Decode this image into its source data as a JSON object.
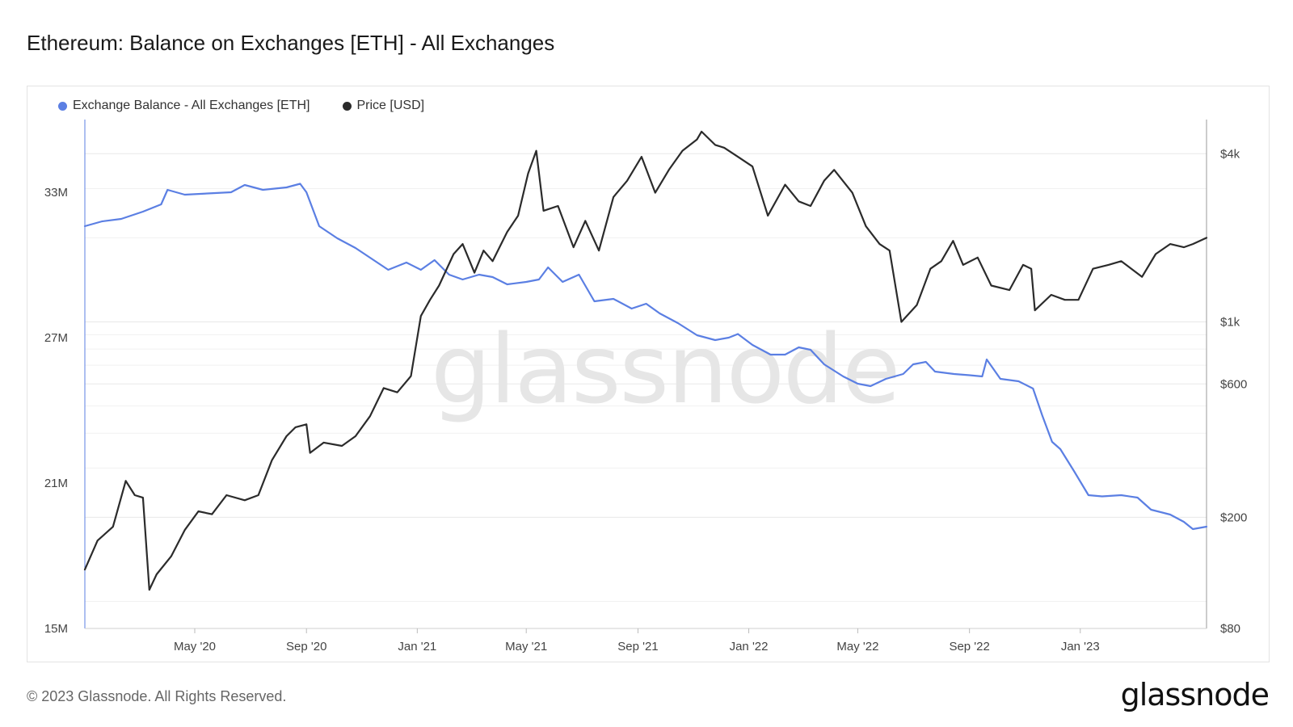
{
  "header": {
    "title": "Ethereum: Balance on Exchanges [ETH] - All Exchanges"
  },
  "legend": [
    {
      "label": "Exchange Balance - All Exchanges [ETH]",
      "color": "#5b7fe3"
    },
    {
      "label": "Price [USD]",
      "color": "#2b2b2b"
    }
  ],
  "watermark": "glassnode",
  "footer": {
    "copyright": "© 2023 Glassnode. All Rights Reserved.",
    "logo": "glassnode"
  },
  "chart_data": {
    "type": "line",
    "x_range": [
      "2020-01-01",
      "2023-05-20"
    ],
    "x_ticks": [
      {
        "date": "2020-05-01",
        "label": "May '20"
      },
      {
        "date": "2020-09-01",
        "label": "Sep '20"
      },
      {
        "date": "2021-01-01",
        "label": "Jan '21"
      },
      {
        "date": "2021-05-01",
        "label": "May '21"
      },
      {
        "date": "2021-09-01",
        "label": "Sep '21"
      },
      {
        "date": "2022-01-01",
        "label": "Jan '22"
      },
      {
        "date": "2022-05-01",
        "label": "May '22"
      },
      {
        "date": "2022-09-01",
        "label": "Sep '22"
      },
      {
        "date": "2023-01-01",
        "label": "Jan '23"
      }
    ],
    "y_left": {
      "scale": "linear",
      "range": [
        15000000,
        36000000
      ],
      "ticks": [
        {
          "value": 15000000,
          "label": "15M"
        },
        {
          "value": 21000000,
          "label": "21M"
        },
        {
          "value": 27000000,
          "label": "27M"
        },
        {
          "value": 33000000,
          "label": "33M"
        }
      ]
    },
    "y_right": {
      "scale": "log",
      "range": [
        80,
        5300
      ],
      "ticks": [
        {
          "value": 80,
          "label": "$80"
        },
        {
          "value": 200,
          "label": "$200"
        },
        {
          "value": 600,
          "label": "$600"
        },
        {
          "value": 1000,
          "label": "$1k"
        },
        {
          "value": 4000,
          "label": "$4k"
        }
      ]
    },
    "grid": true,
    "legend_position": "top-left",
    "series": [
      {
        "name": "Exchange Balance - All Exchanges [ETH]",
        "axis": "left",
        "color": "#5b7fe3",
        "points": [
          [
            "2020-01-01",
            31600000
          ],
          [
            "2020-01-20",
            31800000
          ],
          [
            "2020-02-10",
            31900000
          ],
          [
            "2020-03-05",
            32200000
          ],
          [
            "2020-03-25",
            32500000
          ],
          [
            "2020-04-01",
            33100000
          ],
          [
            "2020-04-20",
            32900000
          ],
          [
            "2020-05-15",
            32950000
          ],
          [
            "2020-06-10",
            33000000
          ],
          [
            "2020-06-25",
            33300000
          ],
          [
            "2020-07-15",
            33100000
          ],
          [
            "2020-08-10",
            33200000
          ],
          [
            "2020-08-25",
            33350000
          ],
          [
            "2020-09-01",
            33000000
          ],
          [
            "2020-09-15",
            31600000
          ],
          [
            "2020-10-05",
            31100000
          ],
          [
            "2020-10-25",
            30700000
          ],
          [
            "2020-11-10",
            30300000
          ],
          [
            "2020-11-30",
            29800000
          ],
          [
            "2020-12-20",
            30100000
          ],
          [
            "2021-01-05",
            29800000
          ],
          [
            "2021-01-20",
            30200000
          ],
          [
            "2021-02-05",
            29600000
          ],
          [
            "2021-02-20",
            29400000
          ],
          [
            "2021-03-10",
            29600000
          ],
          [
            "2021-03-25",
            29500000
          ],
          [
            "2021-04-10",
            29200000
          ],
          [
            "2021-05-01",
            29300000
          ],
          [
            "2021-05-15",
            29400000
          ],
          [
            "2021-05-25",
            29900000
          ],
          [
            "2021-06-10",
            29300000
          ],
          [
            "2021-06-28",
            29600000
          ],
          [
            "2021-07-15",
            28500000
          ],
          [
            "2021-08-05",
            28600000
          ],
          [
            "2021-08-25",
            28200000
          ],
          [
            "2021-09-10",
            28400000
          ],
          [
            "2021-09-25",
            28000000
          ],
          [
            "2021-10-15",
            27600000
          ],
          [
            "2021-11-05",
            27100000
          ],
          [
            "2021-11-25",
            26900000
          ],
          [
            "2021-12-10",
            27000000
          ],
          [
            "2021-12-20",
            27150000
          ],
          [
            "2022-01-05",
            26700000
          ],
          [
            "2022-01-25",
            26300000
          ],
          [
            "2022-02-10",
            26300000
          ],
          [
            "2022-02-25",
            26600000
          ],
          [
            "2022-03-10",
            26500000
          ],
          [
            "2022-03-25",
            25900000
          ],
          [
            "2022-04-15",
            25400000
          ],
          [
            "2022-05-01",
            25100000
          ],
          [
            "2022-05-15",
            25000000
          ],
          [
            "2022-06-01",
            25300000
          ],
          [
            "2022-06-20",
            25500000
          ],
          [
            "2022-07-01",
            25900000
          ],
          [
            "2022-07-15",
            26000000
          ],
          [
            "2022-07-25",
            25600000
          ],
          [
            "2022-08-15",
            25500000
          ],
          [
            "2022-09-01",
            25450000
          ],
          [
            "2022-09-15",
            25400000
          ],
          [
            "2022-09-20",
            26100000
          ],
          [
            "2022-10-05",
            25300000
          ],
          [
            "2022-10-25",
            25200000
          ],
          [
            "2022-11-10",
            24900000
          ],
          [
            "2022-11-20",
            23800000
          ],
          [
            "2022-12-01",
            22700000
          ],
          [
            "2022-12-10",
            22400000
          ],
          [
            "2022-12-25",
            21500000
          ],
          [
            "2023-01-10",
            20500000
          ],
          [
            "2023-01-25",
            20450000
          ],
          [
            "2023-02-15",
            20500000
          ],
          [
            "2023-03-05",
            20400000
          ],
          [
            "2023-03-20",
            19900000
          ],
          [
            "2023-04-10",
            19700000
          ],
          [
            "2023-04-25",
            19400000
          ],
          [
            "2023-05-05",
            19100000
          ],
          [
            "2023-05-20",
            19200000
          ]
        ]
      },
      {
        "name": "Price [USD]",
        "axis": "right",
        "color": "#2b2b2b",
        "points": [
          [
            "2020-01-01",
            130
          ],
          [
            "2020-01-15",
            165
          ],
          [
            "2020-02-01",
            185
          ],
          [
            "2020-02-15",
            270
          ],
          [
            "2020-02-25",
            240
          ],
          [
            "2020-03-05",
            235
          ],
          [
            "2020-03-12",
            110
          ],
          [
            "2020-03-20",
            125
          ],
          [
            "2020-04-05",
            145
          ],
          [
            "2020-04-20",
            180
          ],
          [
            "2020-05-05",
            210
          ],
          [
            "2020-05-20",
            205
          ],
          [
            "2020-06-05",
            240
          ],
          [
            "2020-06-25",
            230
          ],
          [
            "2020-07-10",
            240
          ],
          [
            "2020-07-25",
            320
          ],
          [
            "2020-08-10",
            390
          ],
          [
            "2020-08-20",
            420
          ],
          [
            "2020-09-01",
            430
          ],
          [
            "2020-09-05",
            340
          ],
          [
            "2020-09-20",
            370
          ],
          [
            "2020-10-10",
            360
          ],
          [
            "2020-10-25",
            390
          ],
          [
            "2020-11-10",
            460
          ],
          [
            "2020-11-25",
            580
          ],
          [
            "2020-12-10",
            560
          ],
          [
            "2020-12-25",
            640
          ],
          [
            "2021-01-05",
            1050
          ],
          [
            "2021-01-15",
            1200
          ],
          [
            "2021-01-25",
            1350
          ],
          [
            "2021-02-10",
            1750
          ],
          [
            "2021-02-20",
            1900
          ],
          [
            "2021-03-05",
            1500
          ],
          [
            "2021-03-15",
            1800
          ],
          [
            "2021-03-25",
            1650
          ],
          [
            "2021-04-10",
            2100
          ],
          [
            "2021-04-22",
            2400
          ],
          [
            "2021-05-03",
            3400
          ],
          [
            "2021-05-12",
            4100
          ],
          [
            "2021-05-20",
            2500
          ],
          [
            "2021-06-05",
            2600
          ],
          [
            "2021-06-22",
            1850
          ],
          [
            "2021-07-05",
            2300
          ],
          [
            "2021-07-20",
            1800
          ],
          [
            "2021-08-05",
            2800
          ],
          [
            "2021-08-20",
            3200
          ],
          [
            "2021-09-05",
            3900
          ],
          [
            "2021-09-20",
            2900
          ],
          [
            "2021-10-05",
            3500
          ],
          [
            "2021-10-20",
            4100
          ],
          [
            "2021-11-05",
            4500
          ],
          [
            "2021-11-10",
            4800
          ],
          [
            "2021-11-25",
            4300
          ],
          [
            "2021-12-05",
            4200
          ],
          [
            "2021-12-20",
            3900
          ],
          [
            "2022-01-05",
            3600
          ],
          [
            "2022-01-22",
            2400
          ],
          [
            "2022-02-10",
            3100
          ],
          [
            "2022-02-25",
            2700
          ],
          [
            "2022-03-10",
            2600
          ],
          [
            "2022-03-25",
            3200
          ],
          [
            "2022-04-05",
            3500
          ],
          [
            "2022-04-25",
            2900
          ],
          [
            "2022-05-10",
            2200
          ],
          [
            "2022-05-25",
            1900
          ],
          [
            "2022-06-05",
            1800
          ],
          [
            "2022-06-18",
            1000
          ],
          [
            "2022-07-05",
            1150
          ],
          [
            "2022-07-20",
            1550
          ],
          [
            "2022-08-01",
            1650
          ],
          [
            "2022-08-14",
            1950
          ],
          [
            "2022-08-25",
            1600
          ],
          [
            "2022-09-10",
            1700
          ],
          [
            "2022-09-25",
            1350
          ],
          [
            "2022-10-15",
            1300
          ],
          [
            "2022-10-30",
            1600
          ],
          [
            "2022-11-08",
            1550
          ],
          [
            "2022-11-12",
            1100
          ],
          [
            "2022-11-30",
            1250
          ],
          [
            "2022-12-15",
            1200
          ],
          [
            "2022-12-30",
            1200
          ],
          [
            "2023-01-15",
            1550
          ],
          [
            "2023-02-01",
            1600
          ],
          [
            "2023-02-15",
            1650
          ],
          [
            "2023-03-10",
            1450
          ],
          [
            "2023-03-25",
            1750
          ],
          [
            "2023-04-10",
            1900
          ],
          [
            "2023-04-25",
            1850
          ],
          [
            "2023-05-05",
            1900
          ],
          [
            "2023-05-20",
            2000
          ]
        ]
      }
    ]
  }
}
